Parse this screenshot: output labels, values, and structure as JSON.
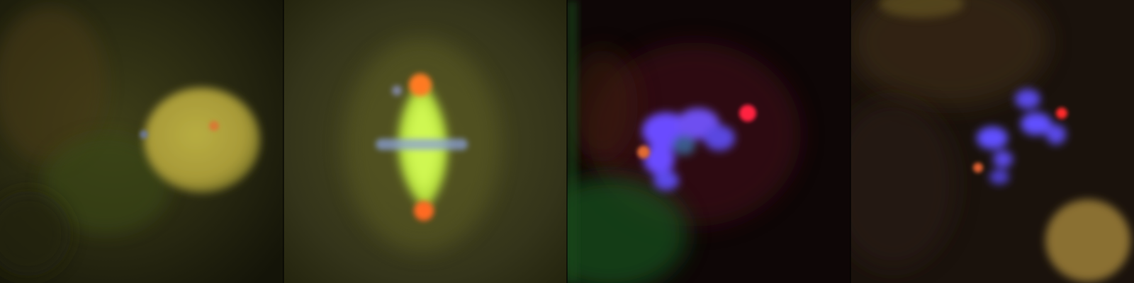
{
  "figure": {
    "panels": [
      {
        "id": "panel-1",
        "palette": {
          "background": "#2a2a10",
          "nucleus": "#b8b040",
          "spot": "#e07030"
        }
      },
      {
        "id": "panel-2",
        "palette": {
          "background": "#3a3a18",
          "spindle": "#c8f040",
          "pole": "#ff7020",
          "chromosomes": "#8090d0"
        }
      },
      {
        "id": "panel-3",
        "palette": {
          "background": "#120808",
          "chromatin": "#6a4cff",
          "red": "#ff2040",
          "green": "#1a6a1a"
        }
      },
      {
        "id": "panel-4",
        "palette": {
          "background": "#1a120c",
          "chromatin": "#6050ff",
          "red": "#ff2a2a",
          "blob": "#8a7030"
        }
      }
    ]
  }
}
